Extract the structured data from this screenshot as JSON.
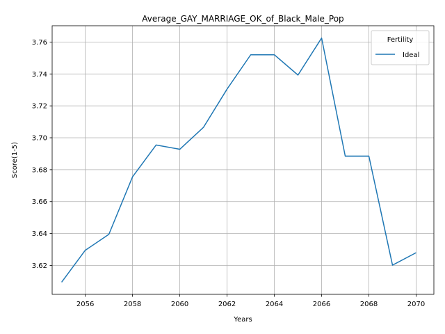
{
  "chart_data": {
    "type": "line",
    "title": "Average_GAY_MARRIAGE_OK_of_Black_Male_Pop",
    "xlabel": "Years",
    "ylabel": "Score(1-5)",
    "x": [
      2055,
      2056,
      2057,
      2058,
      2059,
      2060,
      2061,
      2062,
      2063,
      2064,
      2065,
      2066,
      2067,
      2068,
      2069,
      2070
    ],
    "series": [
      {
        "name": "Ideal",
        "color": "#1f77b4",
        "values": [
          3.6095,
          3.6295,
          3.6395,
          3.6755,
          3.6955,
          3.6928,
          3.7065,
          3.7305,
          3.752,
          3.752,
          3.7393,
          3.7625,
          3.6885,
          3.6885,
          3.6202,
          3.628
        ]
      }
    ],
    "xlim": [
      2054.6,
      2070.75
    ],
    "ylim": [
      3.6019,
      3.7702
    ],
    "xticks": [
      "2056",
      "2058",
      "2060",
      "2062",
      "2064",
      "2066",
      "2068",
      "2070"
    ],
    "yticks": [
      "3.62",
      "3.64",
      "3.66",
      "3.68",
      "3.70",
      "3.72",
      "3.74",
      "3.76"
    ],
    "grid": true,
    "legend": {
      "title": "Fertility",
      "placement": "top-right"
    }
  }
}
